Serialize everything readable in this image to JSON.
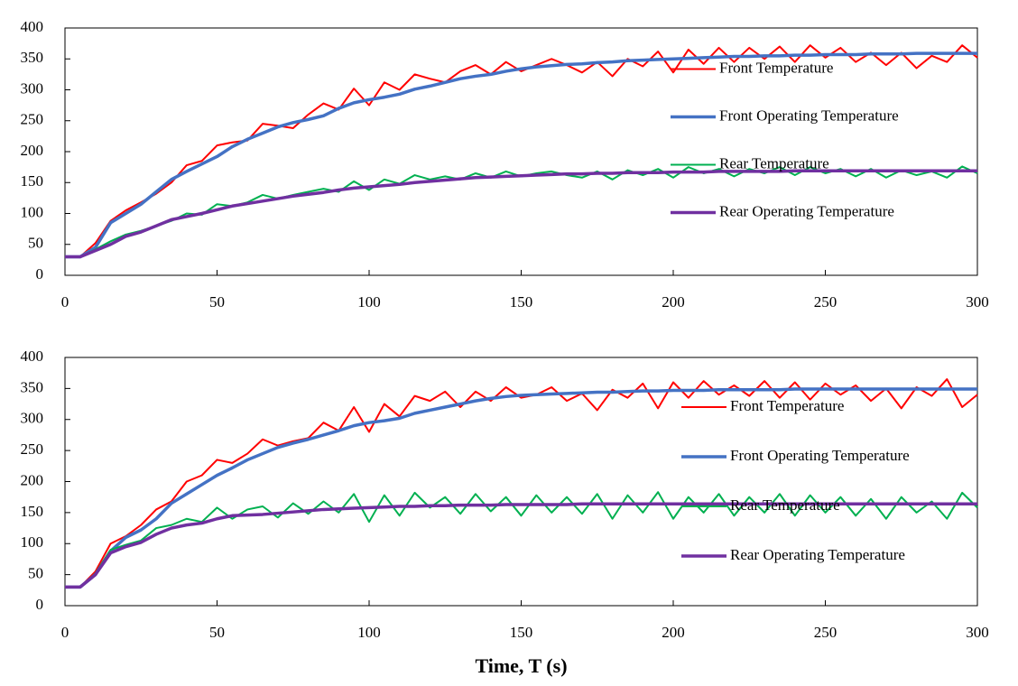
{
  "chart_data": [
    {
      "type": "line",
      "x": [
        0,
        5,
        10,
        15,
        20,
        25,
        30,
        35,
        40,
        45,
        50,
        55,
        60,
        65,
        70,
        75,
        80,
        85,
        90,
        95,
        100,
        105,
        110,
        115,
        120,
        125,
        130,
        135,
        140,
        145,
        150,
        155,
        160,
        165,
        170,
        175,
        180,
        185,
        190,
        195,
        200,
        205,
        210,
        215,
        220,
        225,
        230,
        235,
        240,
        245,
        250,
        255,
        260,
        265,
        270,
        275,
        280,
        285,
        290,
        295,
        300
      ],
      "xlim": [
        0,
        300
      ],
      "xticks": [
        0,
        50,
        100,
        150,
        200,
        250,
        300
      ],
      "ylim": [
        0,
        400
      ],
      "yticks": [
        0,
        50,
        100,
        150,
        200,
        250,
        300,
        350,
        400
      ],
      "legend": "center right",
      "series": [
        {
          "name": "Front Temperature",
          "color": "#ff0000",
          "values": [
            30,
            30,
            52,
            88,
            105,
            118,
            132,
            150,
            178,
            185,
            210,
            215,
            218,
            245,
            242,
            238,
            260,
            278,
            268,
            302,
            275,
            312,
            300,
            325,
            318,
            312,
            330,
            340,
            325,
            345,
            330,
            340,
            350,
            340,
            328,
            345,
            322,
            350,
            338,
            362,
            328,
            365,
            342,
            368,
            345,
            368,
            350,
            370,
            345,
            372,
            352,
            368,
            345,
            360,
            340,
            360,
            335,
            355,
            345,
            372,
            352
          ]
        },
        {
          "name": "Front Operating Temperature",
          "color": "#4472c4",
          "values": [
            30,
            30,
            45,
            85,
            100,
            115,
            135,
            155,
            168,
            180,
            192,
            208,
            220,
            230,
            240,
            247,
            252,
            258,
            270,
            279,
            284,
            288,
            293,
            301,
            306,
            312,
            318,
            322,
            325,
            330,
            334,
            337,
            339,
            341,
            342,
            344,
            345,
            347,
            348,
            349,
            350,
            351,
            352,
            353,
            354,
            354,
            355,
            355,
            356,
            356,
            357,
            357,
            357,
            358,
            358,
            358,
            359,
            359,
            359,
            359,
            359
          ]
        },
        {
          "name": "Rear Temperature",
          "color": "#00b050",
          "values": [
            30,
            30,
            42,
            55,
            66,
            72,
            80,
            88,
            100,
            98,
            115,
            112,
            118,
            130,
            124,
            130,
            135,
            140,
            135,
            152,
            138,
            155,
            148,
            162,
            155,
            160,
            155,
            165,
            158,
            168,
            160,
            165,
            168,
            162,
            158,
            168,
            155,
            170,
            162,
            172,
            158,
            175,
            165,
            172,
            160,
            172,
            165,
            175,
            162,
            175,
            165,
            172,
            160,
            172,
            158,
            170,
            162,
            168,
            158,
            176,
            165
          ]
        },
        {
          "name": "Rear Operating Temperature",
          "color": "#7030a0",
          "values": [
            30,
            30,
            40,
            50,
            63,
            70,
            80,
            90,
            95,
            100,
            106,
            112,
            116,
            120,
            124,
            128,
            131,
            134,
            138,
            141,
            143,
            145,
            147,
            150,
            152,
            154,
            156,
            158,
            159,
            160,
            161,
            162,
            163,
            164,
            164,
            165,
            165,
            166,
            166,
            166,
            167,
            167,
            167,
            168,
            168,
            168,
            168,
            168,
            169,
            169,
            169,
            169,
            169,
            169,
            169,
            169,
            169,
            169,
            169,
            169,
            169
          ]
        }
      ]
    },
    {
      "type": "line",
      "x": [
        0,
        5,
        10,
        15,
        20,
        25,
        30,
        35,
        40,
        45,
        50,
        55,
        60,
        65,
        70,
        75,
        80,
        85,
        90,
        95,
        100,
        105,
        110,
        115,
        120,
        125,
        130,
        135,
        140,
        145,
        150,
        155,
        160,
        165,
        170,
        175,
        180,
        185,
        190,
        195,
        200,
        205,
        210,
        215,
        220,
        225,
        230,
        235,
        240,
        245,
        250,
        255,
        260,
        265,
        270,
        275,
        280,
        285,
        290,
        295,
        300
      ],
      "xlim": [
        0,
        300
      ],
      "xticks": [
        0,
        50,
        100,
        150,
        200,
        250,
        300
      ],
      "ylim": [
        0,
        400
      ],
      "yticks": [
        0,
        50,
        100,
        150,
        200,
        250,
        300,
        350,
        400
      ],
      "legend": "center right",
      "xlabel": "Time, T (s)",
      "series": [
        {
          "name": "Front Temperature",
          "color": "#ff0000",
          "values": [
            30,
            30,
            55,
            100,
            112,
            130,
            155,
            168,
            200,
            210,
            235,
            230,
            245,
            268,
            258,
            265,
            270,
            295,
            282,
            320,
            280,
            325,
            305,
            338,
            330,
            345,
            320,
            345,
            330,
            352,
            335,
            340,
            352,
            330,
            342,
            315,
            348,
            335,
            358,
            318,
            360,
            335,
            362,
            340,
            355,
            338,
            362,
            335,
            360,
            332,
            358,
            340,
            355,
            330,
            350,
            318,
            352,
            338,
            365,
            320,
            340
          ]
        },
        {
          "name": "Front Operating Temperature",
          "color": "#4472c4",
          "values": [
            30,
            30,
            50,
            88,
            110,
            122,
            140,
            165,
            180,
            195,
            210,
            222,
            235,
            245,
            255,
            262,
            268,
            275,
            282,
            290,
            295,
            298,
            302,
            310,
            315,
            320,
            325,
            330,
            334,
            337,
            339,
            340,
            341,
            342,
            343,
            344,
            344,
            345,
            346,
            346,
            347,
            347,
            347,
            348,
            348,
            348,
            348,
            348,
            349,
            349,
            349,
            349,
            349,
            349,
            349,
            349,
            349,
            349,
            349,
            349,
            349
          ]
        },
        {
          "name": "Rear Temperature",
          "color": "#00b050",
          "values": [
            30,
            30,
            52,
            90,
            98,
            105,
            125,
            130,
            140,
            135,
            158,
            140,
            155,
            160,
            142,
            165,
            148,
            168,
            150,
            180,
            135,
            178,
            145,
            182,
            158,
            175,
            148,
            180,
            152,
            175,
            145,
            178,
            150,
            175,
            148,
            180,
            140,
            178,
            150,
            183,
            140,
            175,
            150,
            180,
            145,
            175,
            150,
            180,
            145,
            178,
            150,
            175,
            145,
            172,
            140,
            175,
            150,
            168,
            140,
            182,
            158
          ]
        },
        {
          "name": "Rear Operating Temperature",
          "color": "#7030a0",
          "values": [
            30,
            30,
            50,
            85,
            95,
            102,
            115,
            125,
            130,
            133,
            140,
            145,
            146,
            147,
            149,
            151,
            153,
            155,
            156,
            157,
            158,
            159,
            160,
            160,
            161,
            161,
            162,
            162,
            162,
            163,
            163,
            163,
            163,
            163,
            164,
            164,
            164,
            164,
            164,
            164,
            164,
            164,
            164,
            164,
            164,
            164,
            164,
            164,
            164,
            164,
            164,
            164,
            164,
            164,
            164,
            164,
            164,
            164,
            164,
            164,
            164
          ]
        }
      ]
    }
  ]
}
